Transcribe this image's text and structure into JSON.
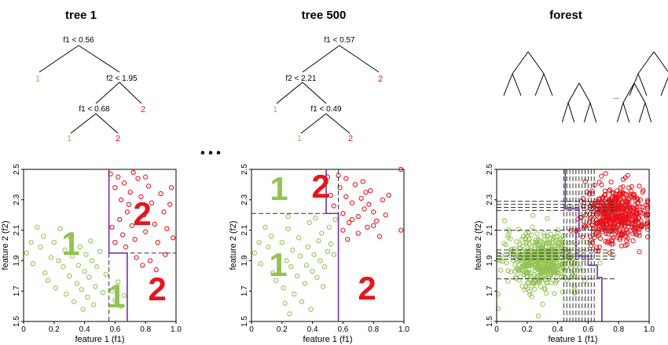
{
  "titles": {
    "tree1": "tree 1",
    "tree500": "tree 500",
    "forest": "forest"
  },
  "ellipsis_top": "• • •",
  "ellipsis_forest": "...",
  "tree1": {
    "root": "f1 < 0.56",
    "n2": "f2 < 1.95",
    "n3": "f1 < 0.68",
    "leaf_root_left": "1",
    "leaf_n2_right": "2",
    "leaf_n3_left": "1",
    "leaf_n3_right": "2"
  },
  "tree500": {
    "root": "f1 < 0.57",
    "n2": "f2 < 2.21",
    "n3": "f1 < 0.49",
    "leaf_root_right": "2",
    "leaf_n2_left": "1",
    "leaf_n3_left": "1",
    "leaf_n3_right": "2"
  },
  "axes": {
    "xlabel": "feature 1 (f1)",
    "ylabel": "feature 2 (f2)",
    "xticks": [
      "0",
      "0.2",
      "0.4",
      "0.6",
      "0.8",
      "1.0"
    ],
    "yticks": [
      "1.5",
      "1.7",
      "1.9",
      "2.1",
      "2.3",
      "2.5"
    ]
  },
  "plot1_labels": {
    "a": "1",
    "b": "2",
    "c": "1",
    "d": "2"
  },
  "plot2_labels": {
    "a": "1",
    "b": "2",
    "c": "1",
    "d": "2"
  },
  "colors": {
    "class1": "#92c353",
    "class2": "#e8141b",
    "split": "#7030a0"
  },
  "chart_data": [
    {
      "type": "scatter",
      "panel": "tree 1",
      "xlabel": "feature 1 (f1)",
      "ylabel": "feature 2 (f2)",
      "xlim": [
        0,
        1.0
      ],
      "ylim": [
        1.5,
        2.5
      ],
      "splits": [
        {
          "feature": "f1",
          "threshold": 0.56
        },
        {
          "feature": "f2",
          "threshold": 1.95,
          "f1_range": [
            0.56,
            1.0
          ]
        },
        {
          "feature": "f1",
          "threshold": 0.68,
          "f2_range": [
            1.5,
            1.95
          ]
        }
      ],
      "series": [
        {
          "name": "1",
          "color": "#92c353",
          "points": [
            [
              0.02,
              1.95
            ],
            [
              0.05,
              2.02
            ],
            [
              0.06,
              1.88
            ],
            [
              0.09,
              2.12
            ],
            [
              0.11,
              1.99
            ],
            [
              0.13,
              2.06
            ],
            [
              0.14,
              1.82
            ],
            [
              0.16,
              1.77
            ],
            [
              0.18,
              1.92
            ],
            [
              0.2,
              2.02
            ],
            [
              0.21,
              1.72
            ],
            [
              0.23,
              1.9
            ],
            [
              0.24,
              2.11
            ],
            [
              0.26,
              1.86
            ],
            [
              0.27,
              1.97
            ],
            [
              0.28,
              1.68
            ],
            [
              0.3,
              1.8
            ],
            [
              0.31,
              2.05
            ],
            [
              0.32,
              1.93
            ],
            [
              0.33,
              1.63
            ],
            [
              0.35,
              1.75
            ],
            [
              0.36,
              1.87
            ],
            [
              0.37,
              1.99
            ],
            [
              0.38,
              1.71
            ],
            [
              0.39,
              1.58
            ],
            [
              0.4,
              1.83
            ],
            [
              0.41,
              1.94
            ],
            [
              0.42,
              1.66
            ],
            [
              0.43,
              1.79
            ],
            [
              0.44,
              2.03
            ],
            [
              0.45,
              1.9
            ],
            [
              0.46,
              1.61
            ],
            [
              0.47,
              1.73
            ],
            [
              0.48,
              1.86
            ],
            [
              0.5,
              1.96
            ],
            [
              0.52,
              1.69
            ],
            [
              0.54,
              1.81
            ],
            [
              0.58,
              1.7
            ],
            [
              0.6,
              1.64
            ],
            [
              0.62,
              1.76
            ],
            [
              0.64,
              1.6
            ],
            [
              0.66,
              1.67
            ]
          ]
        },
        {
          "name": "2",
          "color": "#e8141b",
          "points": [
            [
              0.57,
              2.47
            ],
            [
              0.6,
              2.38
            ],
            [
              0.62,
              2.45
            ],
            [
              0.64,
              2.3
            ],
            [
              0.66,
              2.41
            ],
            [
              0.68,
              2.22
            ],
            [
              0.7,
              2.35
            ],
            [
              0.72,
              2.48
            ],
            [
              0.58,
              2.12
            ],
            [
              0.6,
              2.02
            ],
            [
              0.63,
              2.17
            ],
            [
              0.65,
              2.07
            ],
            [
              0.67,
              1.99
            ],
            [
              0.69,
              2.27
            ],
            [
              0.71,
              2.13
            ],
            [
              0.73,
              2.04
            ],
            [
              0.75,
              2.44
            ],
            [
              0.77,
              2.32
            ],
            [
              0.79,
              2.2
            ],
            [
              0.8,
              2.09
            ],
            [
              0.82,
              2.39
            ],
            [
              0.84,
              2.28
            ],
            [
              0.86,
              2.14
            ],
            [
              0.88,
              2.02
            ],
            [
              0.9,
              2.34
            ],
            [
              0.92,
              2.22
            ],
            [
              0.94,
              2.11
            ],
            [
              0.96,
              2.27
            ],
            [
              0.97,
              2.38
            ],
            [
              0.98,
              2.05
            ],
            [
              0.74,
              1.92
            ],
            [
              0.78,
              1.87
            ],
            [
              0.83,
              1.9
            ],
            [
              0.87,
              1.84
            ],
            [
              0.93,
              1.94
            ],
            [
              0.8,
              2.45
            ]
          ]
        }
      ]
    },
    {
      "type": "scatter",
      "panel": "tree 500",
      "xlabel": "feature 1 (f1)",
      "ylabel": "feature 2 (f2)",
      "xlim": [
        0,
        1.0
      ],
      "ylim": [
        1.5,
        2.5
      ],
      "splits": [
        {
          "feature": "f1",
          "threshold": 0.57
        },
        {
          "feature": "f2",
          "threshold": 2.21,
          "f1_range": [
            0,
            0.57
          ]
        },
        {
          "feature": "f1",
          "threshold": 0.49,
          "f2_range": [
            2.21,
            2.5
          ]
        }
      ],
      "series": [
        {
          "name": "1",
          "color": "#92c353",
          "points": [
            [
              0.02,
              1.95
            ],
            [
              0.05,
              2.02
            ],
            [
              0.06,
              1.88
            ],
            [
              0.09,
              2.12
            ],
            [
              0.11,
              1.99
            ],
            [
              0.13,
              2.06
            ],
            [
              0.14,
              1.82
            ],
            [
              0.16,
              1.77
            ],
            [
              0.18,
              1.92
            ],
            [
              0.2,
              2.02
            ],
            [
              0.21,
              1.72
            ],
            [
              0.23,
              1.9
            ],
            [
              0.24,
              2.11
            ],
            [
              0.26,
              1.86
            ],
            [
              0.27,
              1.97
            ],
            [
              0.28,
              1.68
            ],
            [
              0.3,
              1.8
            ],
            [
              0.31,
              2.05
            ],
            [
              0.32,
              1.93
            ],
            [
              0.33,
              1.63
            ],
            [
              0.35,
              1.75
            ],
            [
              0.36,
              1.87
            ],
            [
              0.37,
              1.99
            ],
            [
              0.38,
              2.15
            ],
            [
              0.39,
              1.58
            ],
            [
              0.4,
              1.83
            ],
            [
              0.41,
              1.94
            ],
            [
              0.42,
              2.18
            ],
            [
              0.43,
              1.79
            ],
            [
              0.44,
              2.03
            ],
            [
              0.45,
              1.9
            ],
            [
              0.46,
              2.08
            ],
            [
              0.47,
              1.73
            ],
            [
              0.48,
              1.86
            ],
            [
              0.5,
              1.96
            ],
            [
              0.51,
              2.12
            ],
            [
              0.52,
              2.01
            ],
            [
              0.54,
              1.94
            ],
            [
              0.55,
              2.17
            ],
            [
              0.24,
              2.19
            ],
            [
              0.22,
              1.62
            ],
            [
              0.25,
              1.55
            ]
          ]
        },
        {
          "name": "2",
          "color": "#e8141b",
          "points": [
            [
              0.5,
              2.45
            ],
            [
              0.52,
              2.33
            ],
            [
              0.54,
              2.26
            ],
            [
              0.58,
              2.38
            ],
            [
              0.6,
              2.21
            ],
            [
              0.62,
              2.32
            ],
            [
              0.64,
              2.15
            ],
            [
              0.66,
              2.28
            ],
            [
              0.68,
              2.4
            ],
            [
              0.7,
              2.19
            ],
            [
              0.72,
              2.31
            ],
            [
              0.74,
              2.24
            ],
            [
              0.76,
              2.12
            ],
            [
              0.78,
              2.36
            ],
            [
              0.8,
              2.22
            ],
            [
              0.82,
              2.16
            ],
            [
              0.84,
              2.06
            ],
            [
              0.86,
              2.3
            ],
            [
              0.88,
              2.2
            ],
            [
              0.6,
              2.1
            ],
            [
              0.63,
              2.04
            ],
            [
              0.66,
              2.17
            ],
            [
              0.7,
              2.08
            ],
            [
              0.73,
              2.42
            ],
            [
              0.75,
              2.35
            ],
            [
              0.77,
              2.27
            ],
            [
              0.8,
              2.13
            ],
            [
              0.9,
              2.33
            ],
            [
              0.98,
              2.5
            ],
            [
              0.98,
              2.1
            ],
            [
              0.57,
              2.46
            ],
            [
              0.62,
              2.44
            ]
          ]
        }
      ]
    },
    {
      "type": "scatter",
      "panel": "forest",
      "xlabel": "feature 1 (f1)",
      "ylabel": "feature 2 (f2)",
      "xlim": [
        0,
        1.0
      ],
      "ylim": [
        1.5,
        2.5
      ],
      "clusters": [
        {
          "name": "1",
          "color": "#92c353",
          "center": [
            0.3,
            1.9
          ],
          "spread": [
            0.12,
            0.09
          ],
          "count": 520
        },
        {
          "name": "2",
          "color": "#e8141b",
          "center": [
            0.78,
            2.2
          ],
          "spread": [
            0.1,
            0.09
          ],
          "count": 520
        }
      ],
      "vertical_splits": [
        0.44,
        0.46,
        0.48,
        0.5,
        0.52,
        0.54,
        0.56,
        0.58,
        0.6,
        0.62,
        0.64
      ],
      "horizontal_splits": [
        2.29,
        2.27,
        2.25,
        2.23,
        2.1,
        1.97,
        1.95,
        1.93,
        1.91,
        1.78
      ],
      "boundary": [
        [
          0.45,
          2.5
        ],
        [
          0.45,
          2.24
        ],
        [
          0.54,
          2.24
        ],
        [
          0.54,
          2.1
        ],
        [
          0.52,
          2.1
        ],
        [
          0.52,
          1.93
        ],
        [
          0.6,
          1.93
        ],
        [
          0.6,
          1.87
        ],
        [
          0.66,
          1.87
        ],
        [
          0.66,
          1.79
        ],
        [
          0.69,
          1.79
        ],
        [
          0.69,
          1.5
        ]
      ]
    }
  ]
}
